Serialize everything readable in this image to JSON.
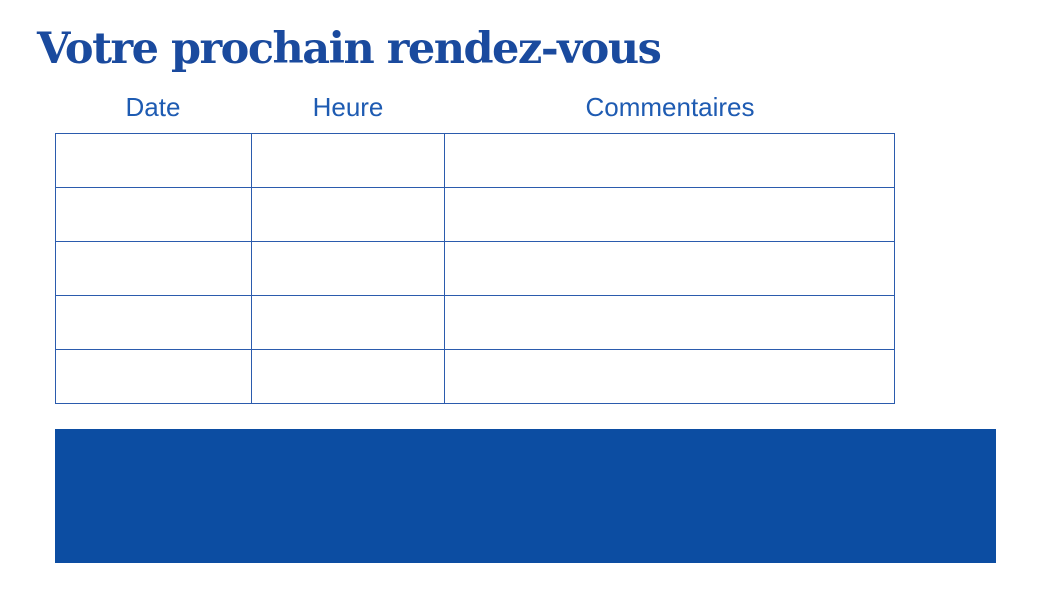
{
  "page": {
    "title": "Votre prochain rendez-vous"
  },
  "colors": {
    "title_text": "#1a4a9e",
    "header_text": "#1e5bb2",
    "table_border": "#2b5bad",
    "banner_fill": "#0c4da2",
    "background": "#ffffff"
  },
  "table": {
    "headers": [
      "Date",
      "Heure",
      "Commentaires"
    ],
    "rows": [
      [
        "",
        "",
        ""
      ],
      [
        "",
        "",
        ""
      ],
      [
        "",
        "",
        ""
      ],
      [
        "",
        "",
        ""
      ],
      [
        "",
        "",
        ""
      ]
    ]
  }
}
